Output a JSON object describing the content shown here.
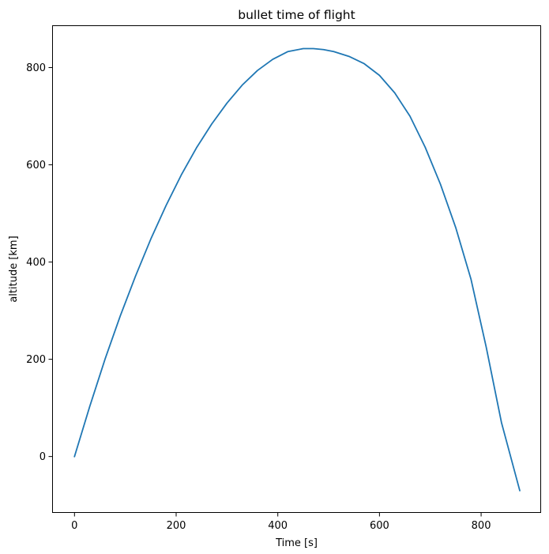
{
  "chart_data": {
    "type": "line",
    "title": "bullet time of flight",
    "xlabel": "Time [s]",
    "ylabel": "altitude [km]",
    "xlim": [
      -44,
      918
    ],
    "ylim": [
      -116,
      887
    ],
    "xticks": [
      0,
      200,
      400,
      600,
      800
    ],
    "yticks": [
      0,
      200,
      400,
      600,
      800
    ],
    "grid": false,
    "series": [
      {
        "color": "#1f77b4",
        "x": [
          0,
          30,
          60,
          90,
          120,
          150,
          180,
          210,
          240,
          270,
          300,
          330,
          360,
          390,
          420,
          450,
          470,
          490,
          510,
          540,
          570,
          600,
          630,
          660,
          690,
          720,
          750,
          780,
          810,
          840,
          876
        ],
        "y": [
          0,
          103,
          200,
          289,
          371,
          447,
          516,
          579,
          635,
          684,
          727,
          764,
          794,
          817,
          833,
          839,
          839,
          837,
          833,
          823,
          808,
          784,
          748,
          700,
          636,
          560,
          471,
          365,
          225,
          70,
          -70
        ]
      }
    ]
  }
}
